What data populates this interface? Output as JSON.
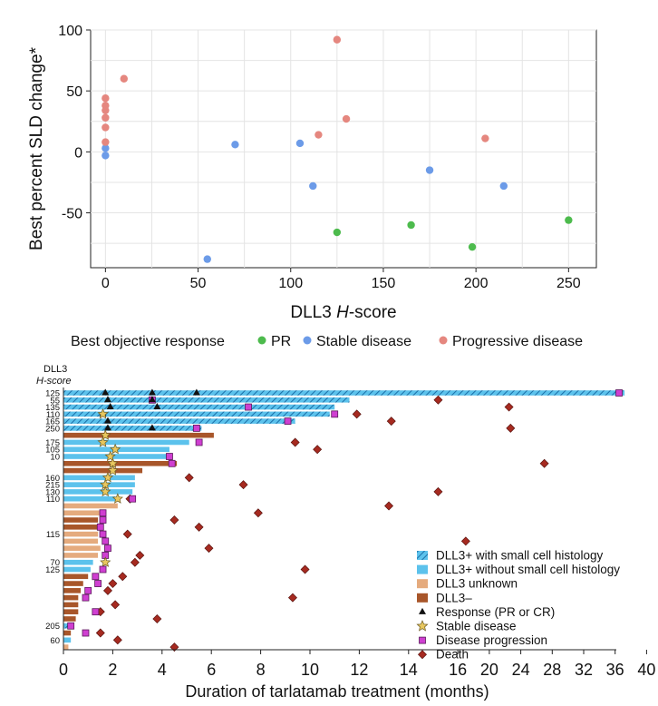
{
  "chart_data": [
    {
      "type": "scatter",
      "ylabel": "Best percent SLD change*",
      "xlabel_main": "DLL3 ",
      "xlabel_italic": "H",
      "xlabel_rest": "-score",
      "xlim": [
        -8,
        265
      ],
      "ylim": [
        -95,
        100
      ],
      "xticks": [
        0,
        50,
        100,
        150,
        200,
        250
      ],
      "yticks": [
        -50,
        0,
        50,
        100
      ],
      "grid": true,
      "legend_title": "Best objective response",
      "series": [
        {
          "name": "PR",
          "color": "#4dbb4d",
          "points": [
            [
              125,
              -66
            ],
            [
              165,
              -60
            ],
            [
              198,
              -78
            ],
            [
              250,
              -56
            ]
          ]
        },
        {
          "name": "Stable disease",
          "color": "#6c9be8",
          "points": [
            [
              0,
              3
            ],
            [
              0,
              -3
            ],
            [
              55,
              -88
            ],
            [
              70,
              6
            ],
            [
              105,
              7
            ],
            [
              112,
              -28
            ],
            [
              175,
              -15
            ],
            [
              215,
              -28
            ]
          ]
        },
        {
          "name": "Progressive disease",
          "color": "#e5877f",
          "points": [
            [
              0,
              8
            ],
            [
              0,
              20
            ],
            [
              0,
              28
            ],
            [
              0,
              34
            ],
            [
              0,
              38
            ],
            [
              0,
              44
            ],
            [
              10,
              60
            ],
            [
              115,
              14
            ],
            [
              125,
              92
            ],
            [
              130,
              27
            ],
            [
              205,
              11
            ]
          ]
        }
      ]
    },
    {
      "type": "bar",
      "orientation": "horizontal",
      "xlabel": "Duration of tarlatamab treatment (months)",
      "ylabel_line1": "DLL3",
      "ylabel_line2": "H-score",
      "xticks": [
        "0",
        "2",
        "4",
        "6",
        "8",
        "10",
        "12",
        "14",
        "16",
        "20",
        "24",
        "28",
        "32",
        "36",
        "40"
      ],
      "legend": [
        {
          "key": "hatched",
          "label": "DLL3+ with small cell histology",
          "color": "#5cc2ec"
        },
        {
          "key": "plus",
          "label": "DLL3+ without small cell histology",
          "color": "#5cc2ec"
        },
        {
          "key": "unknown",
          "label": "DLL3 unknown",
          "color": "#e5ab7e"
        },
        {
          "key": "minus",
          "label": "DLL3–",
          "color": "#a8562a"
        },
        {
          "key": "response",
          "label": "Response (PR or CR)",
          "color": "#111111"
        },
        {
          "key": "stable",
          "label": "Stable disease",
          "color": "#e8c75f"
        },
        {
          "key": "progression",
          "label": "Disease progression",
          "color": "#cf3fd1"
        },
        {
          "key": "death",
          "label": "Death",
          "color": "#a62a20"
        }
      ],
      "rows": [
        {
          "label": "125",
          "cat": "hatched",
          "len": 37.2,
          "resp": [
            1.7,
            3.6,
            5.4
          ],
          "prog": 36.5
        },
        {
          "label": "55",
          "cat": "hatched",
          "len": 11.6,
          "resp": [
            1.8,
            3.6
          ],
          "prog": 3.6,
          "death": 15.2
        },
        {
          "label": "135",
          "cat": "hatched",
          "len": 11.0,
          "resp": [
            1.9,
            3.8
          ],
          "prog": 7.5,
          "death": 22.5
        },
        {
          "label": "110",
          "cat": "hatched",
          "len": 10.8,
          "resp": [
            1.6
          ],
          "stable": [
            1.6
          ],
          "prog": 11.0,
          "death": 11.9
        },
        {
          "label": "165",
          "cat": "hatched",
          "len": 9.4,
          "resp": [
            1.8
          ],
          "prog": 9.1,
          "death": 13.3
        },
        {
          "label": "250",
          "cat": "hatched",
          "len": 5.6,
          "resp": [
            1.8,
            3.6
          ],
          "prog": 5.4,
          "death": 22.7
        },
        {
          "label": "",
          "cat": "minus",
          "len": 6.1,
          "stable": [
            1.7
          ]
        },
        {
          "label": "175",
          "cat": "plus",
          "len": 5.1,
          "stable": [
            1.6
          ],
          "prog": 5.5,
          "death": 9.4
        },
        {
          "label": "105",
          "cat": "plus",
          "len": 4.3,
          "stable": [
            2.1
          ],
          "death": 10.3
        },
        {
          "label": "10",
          "cat": "plus",
          "len": 4.4,
          "stable": [
            1.9
          ],
          "prog": 4.3
        },
        {
          "label": "",
          "cat": "minus",
          "len": 4.6,
          "stable": [
            2.0
          ],
          "prog": 4.4,
          "death": 27.0
        },
        {
          "label": "",
          "cat": "minus",
          "len": 3.2,
          "stable": [
            2.0
          ]
        },
        {
          "label": "160",
          "cat": "plus",
          "len": 2.9,
          "stable": [
            1.8
          ],
          "death": 5.1
        },
        {
          "label": "215",
          "cat": "plus",
          "len": 2.9,
          "stable": [
            1.7
          ],
          "death": 7.3
        },
        {
          "label": "130",
          "cat": "plus",
          "len": 2.8,
          "stable": [
            1.7
          ],
          "death": 15.2
        },
        {
          "label": "110",
          "cat": "plus",
          "len": 2.1,
          "stable": [
            2.2
          ],
          "prog": 2.8,
          "death": 2.7
        },
        {
          "label": "",
          "cat": "unknown",
          "len": 2.2,
          "death": 13.2
        },
        {
          "label": "",
          "cat": "unknown",
          "len": 1.6,
          "prog": 1.6,
          "death": 7.9
        },
        {
          "label": "",
          "cat": "minus",
          "len": 1.4,
          "prog": 1.6,
          "death": 4.5
        },
        {
          "label": "",
          "cat": "minus",
          "len": 1.4,
          "prog": 1.5,
          "death": 5.5
        },
        {
          "label": "115",
          "cat": "unknown",
          "len": 1.4,
          "prog": 1.6,
          "death": 2.6
        },
        {
          "label": "",
          "cat": "unknown",
          "len": 1.4,
          "prog": 1.7,
          "death": 17.0
        },
        {
          "label": "",
          "cat": "unknown",
          "len": 1.5,
          "prog": 1.8,
          "death": 5.9
        },
        {
          "label": "",
          "cat": "unknown",
          "len": 1.4,
          "prog": 1.7,
          "death": 3.1
        },
        {
          "label": "70",
          "cat": "plus",
          "len": 1.2,
          "stable": [
            1.7
          ],
          "death": 2.9
        },
        {
          "label": "125",
          "cat": "plus",
          "len": 1.1,
          "prog": 1.6,
          "death": 9.8
        },
        {
          "label": "",
          "cat": "minus",
          "len": 1.0,
          "prog": 1.3,
          "death": 2.4
        },
        {
          "label": "",
          "cat": "minus",
          "len": 0.8,
          "prog": 1.4,
          "death": 2.0
        },
        {
          "label": "",
          "cat": "minus",
          "len": 0.7,
          "prog": 1.0,
          "death": 1.8
        },
        {
          "label": "",
          "cat": "minus",
          "len": 0.6,
          "prog": 0.9,
          "death": 9.3
        },
        {
          "label": "",
          "cat": "minus",
          "len": 0.6,
          "death": 2.1
        },
        {
          "label": "",
          "cat": "minus",
          "len": 0.6,
          "prog": 1.3,
          "death": 1.5
        },
        {
          "label": "",
          "cat": "minus",
          "len": 0.5,
          "death": 3.8
        },
        {
          "label": "205",
          "cat": "hatched",
          "len": 0.4,
          "prog": 0.3
        },
        {
          "label": "",
          "cat": "minus",
          "len": 0.3,
          "prog": 0.9,
          "death": 1.5
        },
        {
          "label": "60",
          "cat": "plus",
          "len": 0.3,
          "death": 2.2
        },
        {
          "label": "",
          "cat": "unknown",
          "len": 0.2,
          "death": 4.5
        }
      ]
    }
  ]
}
